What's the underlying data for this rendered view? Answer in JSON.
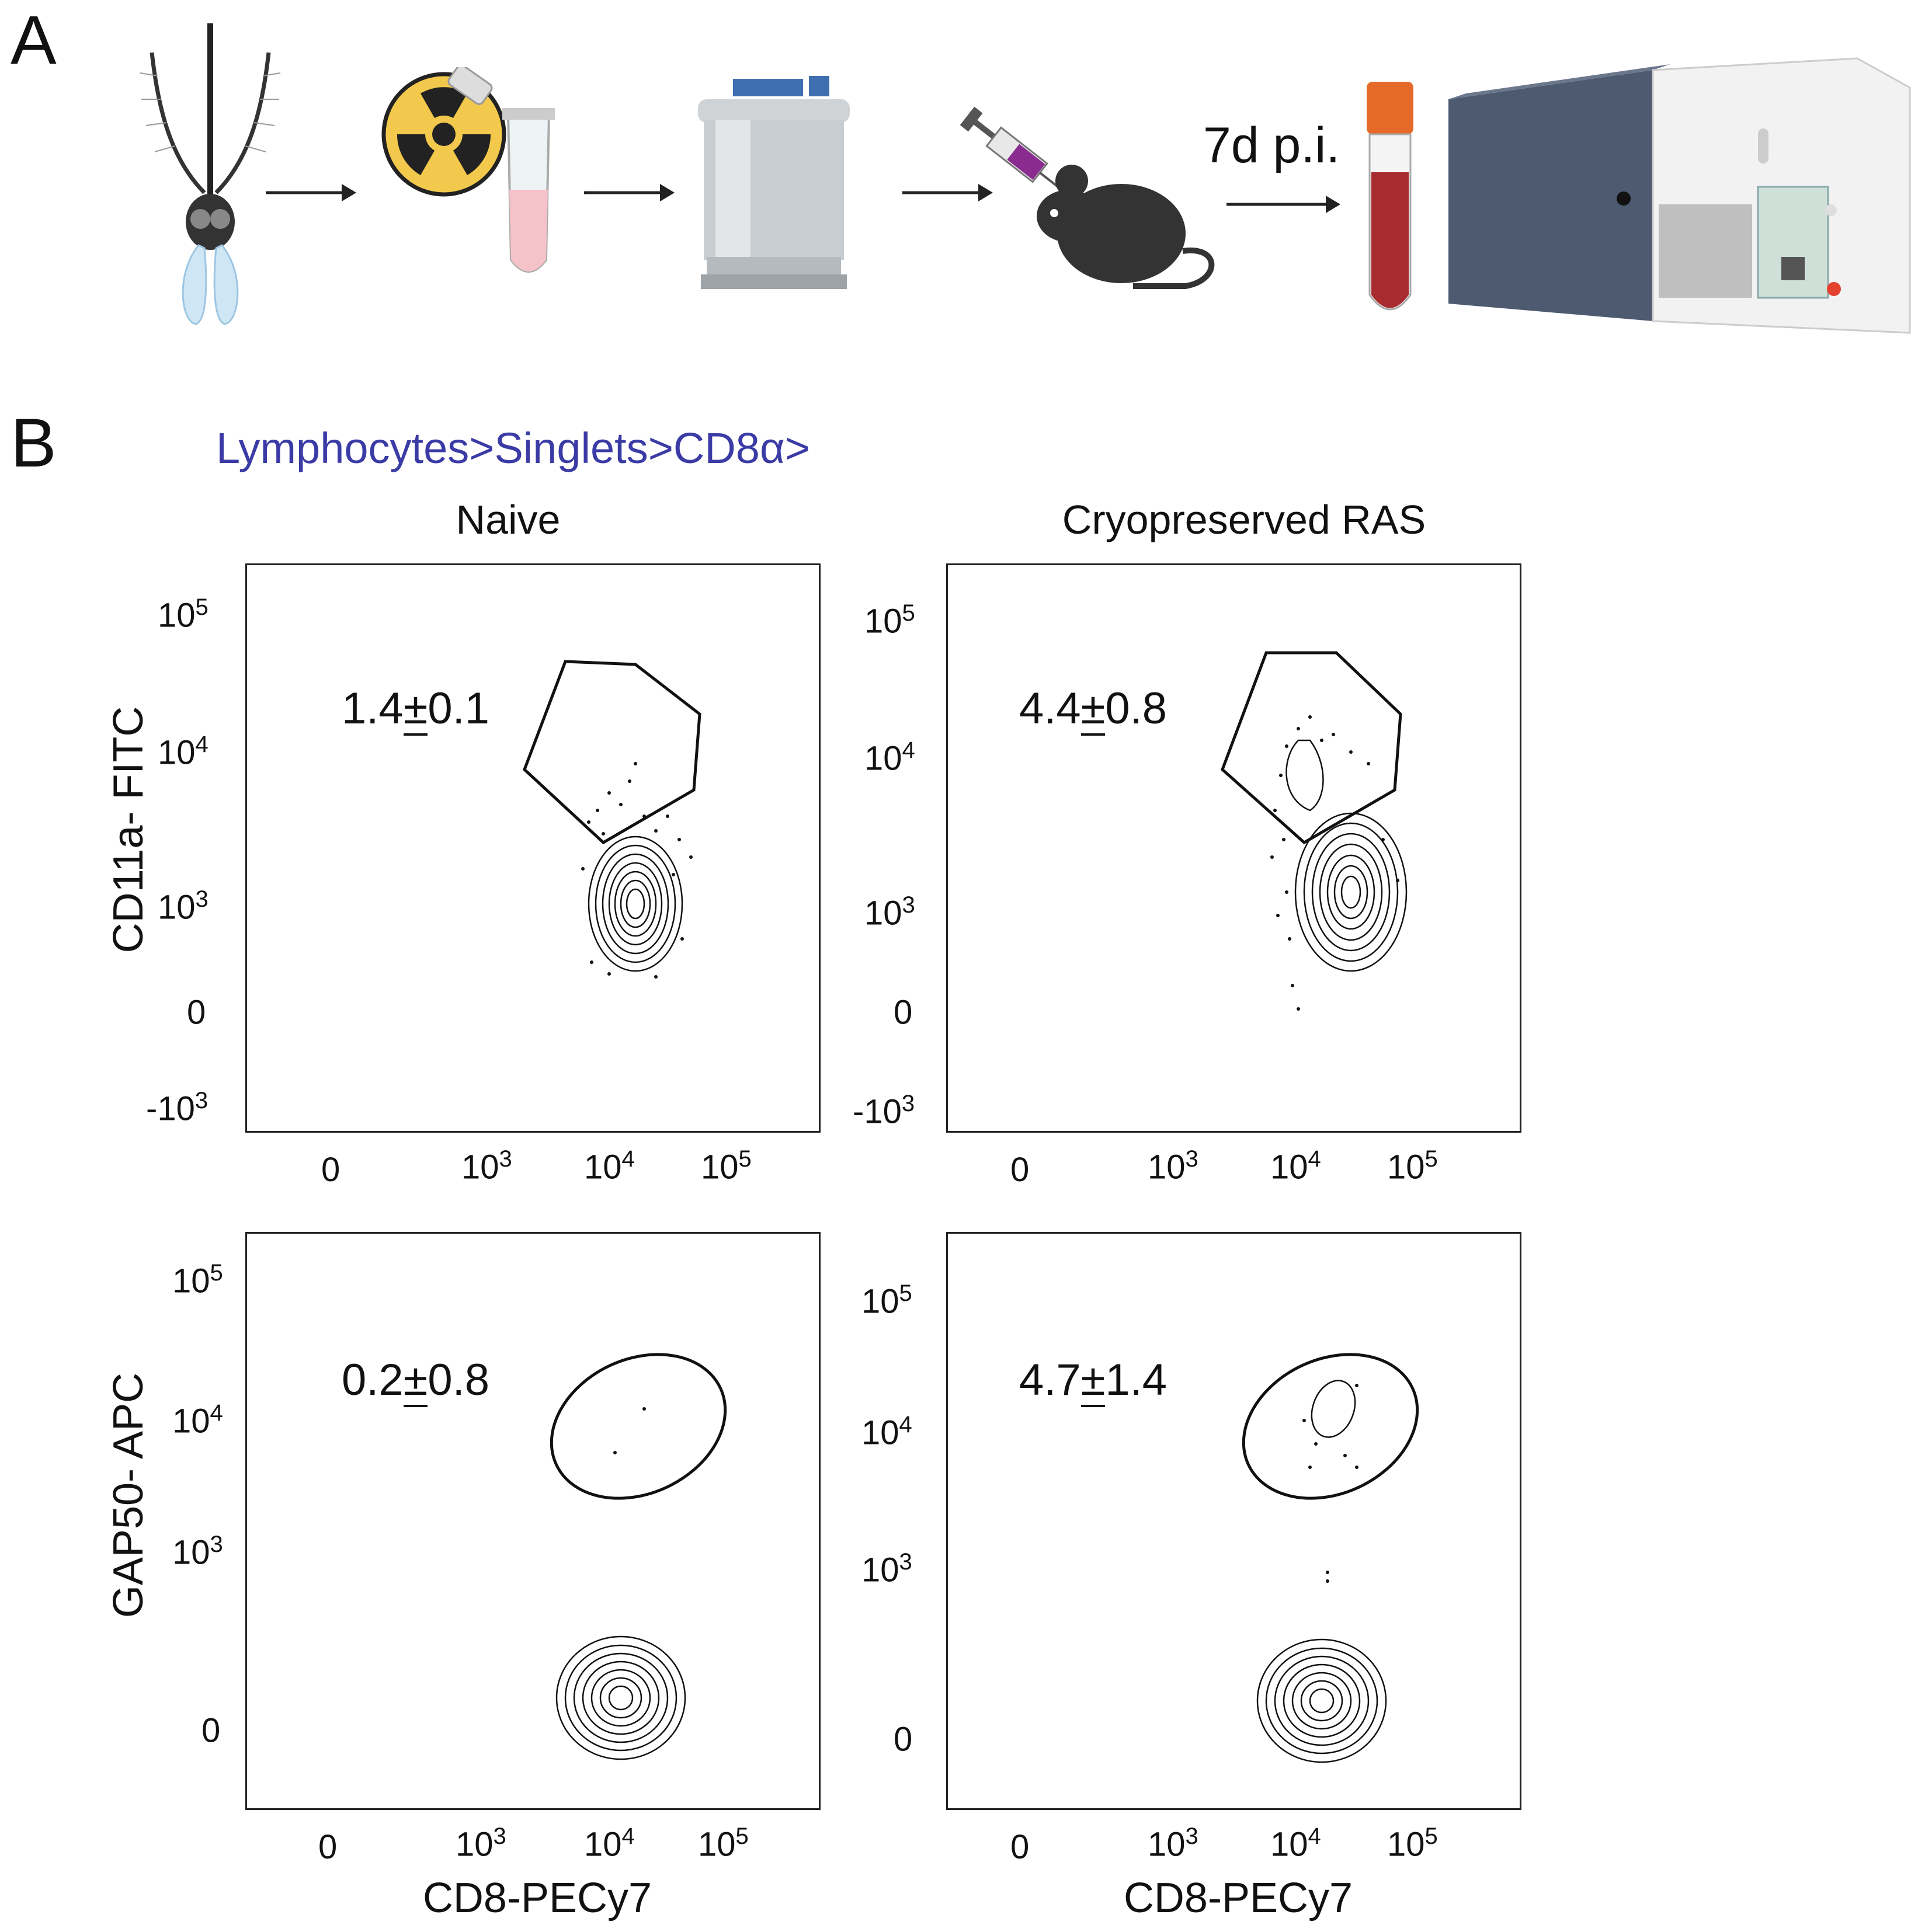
{
  "panel_a": {
    "letter": "A",
    "step_label": "7d p.i.",
    "icons": [
      "mosquito-icon",
      "radiation-icon",
      "tube-icon",
      "cryo-tank-icon",
      "syringe-icon",
      "mouse-icon",
      "blood-tube-icon",
      "flow-cytometer-icon"
    ]
  },
  "panel_b": {
    "letter": "B",
    "gating": "Lymphocytes>Singlets>CD8α>",
    "col_titles": [
      "Naive",
      "Cryopreserved RAS"
    ],
    "row_ylabels": [
      "CD11a- FITC",
      "GAP50- APC"
    ],
    "xlabel": "CD8-PECy7",
    "x_ticks": [
      "0",
      "10",
      "10",
      "10"
    ],
    "x_tick_exps": [
      "",
      "3",
      "4",
      "5"
    ],
    "top_y_ticks": [
      "10",
      "10",
      "10",
      "0",
      "-10"
    ],
    "top_y_exps": [
      "5",
      "4",
      "3",
      "",
      "3"
    ],
    "bottom_y_ticks": [
      "10",
      "10",
      "10",
      "0"
    ],
    "bottom_y_exps": [
      "5",
      "4",
      "3",
      ""
    ],
    "percentages": {
      "naive_cd11a": {
        "value": "1.4",
        "pm": "±",
        "err": "0.1"
      },
      "ras_cd11a": {
        "value": "4.4",
        "pm": "±",
        "err": "0.8"
      },
      "naive_gap50": {
        "value": "0.2",
        "pm": "±",
        "err": "0.8"
      },
      "ras_gap50": {
        "value": "4.7",
        "pm": "±",
        "err": "1.4"
      }
    }
  },
  "chart_data": [
    {
      "type": "scatter",
      "title": "Naive",
      "xlabel": "CD8-PECy7",
      "ylabel": "CD11a- FITC",
      "gate_percent": 1.4,
      "gate_error": 0.1,
      "axes": "biexponential"
    },
    {
      "type": "scatter",
      "title": "Cryopreserved RAS",
      "xlabel": "CD8-PECy7",
      "ylabel": "CD11a- FITC",
      "gate_percent": 4.4,
      "gate_error": 0.8,
      "axes": "biexponential"
    },
    {
      "type": "scatter",
      "title": "Naive",
      "xlabel": "CD8-PECy7",
      "ylabel": "GAP50- APC",
      "gate_percent": 0.2,
      "gate_error": 0.8,
      "axes": "biexponential"
    },
    {
      "type": "scatter",
      "title": "Cryopreserved RAS",
      "xlabel": "CD8-PECy7",
      "ylabel": "GAP50- APC",
      "gate_percent": 4.7,
      "gate_error": 1.4,
      "axes": "biexponential"
    }
  ]
}
